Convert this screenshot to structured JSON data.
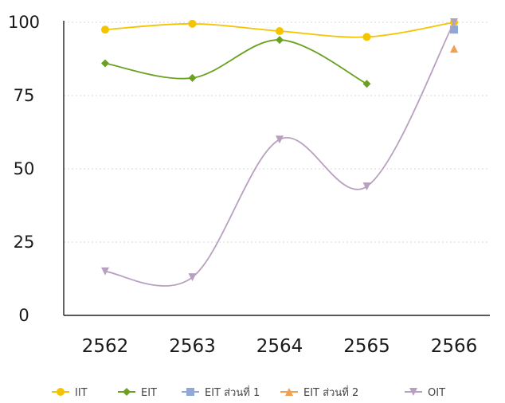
{
  "chart_data": {
    "type": "line",
    "title": "",
    "xlabel": "",
    "ylabel": "",
    "categories": [
      "2562",
      "2563",
      "2564",
      "2565",
      "2566"
    ],
    "y_ticks": [
      "0",
      "25",
      "50",
      "75",
      "100"
    ],
    "ylim": [
      0,
      100
    ],
    "grid": "horizontal dashed",
    "legend_position": "bottom",
    "series": [
      {
        "name": "IIT",
        "marker": "circle",
        "color": "#f5c400",
        "values": [
          97.5,
          99.5,
          97,
          95,
          100
        ]
      },
      {
        "name": "EIT",
        "marker": "diamond",
        "color": "#6aa121",
        "values": [
          86,
          81,
          94,
          79,
          null
        ]
      },
      {
        "name": "EIT ส่วนที่ 1",
        "marker": "square",
        "color": "#8fa8d8",
        "values": [
          null,
          null,
          null,
          null,
          97.5
        ]
      },
      {
        "name": "EIT ส่วนที่ 2",
        "marker": "triangle-up",
        "color": "#f0a050",
        "values": [
          null,
          null,
          null,
          null,
          91
        ]
      },
      {
        "name": "OIT",
        "marker": "triangle-down",
        "color": "#b8a0c0",
        "values": [
          15,
          13,
          60,
          44,
          100
        ]
      }
    ]
  }
}
